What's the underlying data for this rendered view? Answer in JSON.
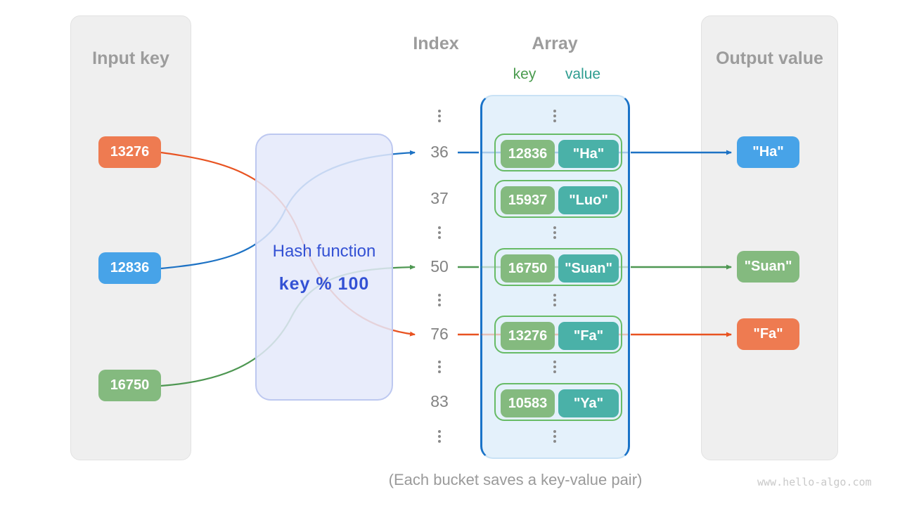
{
  "panels": {
    "input": {
      "title": "Input key"
    },
    "output": {
      "title": "Output value"
    }
  },
  "hash_box": {
    "title": "Hash function",
    "formula": "key % 100"
  },
  "columns": {
    "index_header": "Index",
    "array_header": "Array",
    "key_label": "key",
    "value_label": "value"
  },
  "input_keys": [
    {
      "label": "13276",
      "color": "orange"
    },
    {
      "label": "12836",
      "color": "blue"
    },
    {
      "label": "16750",
      "color": "green"
    }
  ],
  "rows": [
    {
      "type": "dots"
    },
    {
      "type": "entry",
      "index": "36",
      "bucket": {
        "key": "12836",
        "value": "\"Ha\""
      },
      "line": "blue"
    },
    {
      "type": "entry",
      "index": "37",
      "bucket": {
        "key": "15937",
        "value": "\"Luo\""
      },
      "line": null
    },
    {
      "type": "dots"
    },
    {
      "type": "entry",
      "index": "50",
      "bucket": {
        "key": "16750",
        "value": "\"Suan\""
      },
      "line": "green"
    },
    {
      "type": "dots"
    },
    {
      "type": "entry",
      "index": "76",
      "bucket": {
        "key": "13276",
        "value": "\"Fa\""
      },
      "line": "orange"
    },
    {
      "type": "dots"
    },
    {
      "type": "entry",
      "index": "83",
      "bucket": {
        "key": "10583",
        "value": "\"Ya\""
      },
      "line": null
    },
    {
      "type": "dots"
    }
  ],
  "output_values": [
    {
      "label": "\"Ha\"",
      "color": "blue"
    },
    {
      "label": "\"Suan\"",
      "color": "green"
    },
    {
      "label": "\"Fa\"",
      "color": "orange"
    }
  ],
  "caption": "(Each bucket saves a key-value pair)",
  "watermark": "www.hello-algo.com",
  "colors": {
    "orange_box": "#EE7B51",
    "blue_box": "#47A3E8",
    "green_box": "#84BA7F",
    "teal_box": "#4AB1A8",
    "line_blue": "#1D72C4",
    "line_green": "#4E9752",
    "line_orange": "#E85321",
    "hash_text": "#3351D4",
    "hash_box_bg": "#E9EDFB",
    "array_border": "#1A73C8",
    "array_bg": "#E4F1FB",
    "pair_border": "#67BB66",
    "panel_bg": "#EFEFEF",
    "title_gray": "#9C9C9C",
    "index_gray": "#828282",
    "key_label_green": "#4A9B4E",
    "value_label_teal": "#2E9D90",
    "watermark_gray": "#C9C9C9"
  }
}
